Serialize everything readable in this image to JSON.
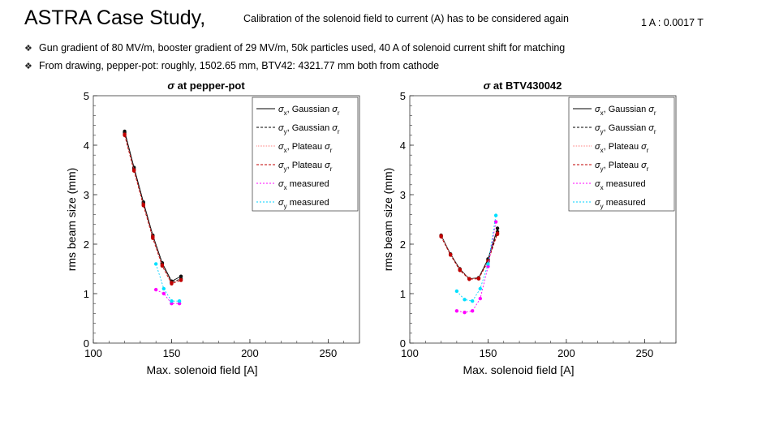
{
  "slide": {
    "title": "ASTRA Case Study,",
    "subtitle": "Calibration of the solenoid field to current (A) has to be considered again",
    "ratio_note": "1 A : 0.0017 T",
    "bullets": [
      {
        "icon": "diamond-bullet-icon",
        "text": "Gun gradient of 80 MV/m, booster gradient of 29 MV/m, 50k particles used, 40 A of solenoid current shift for matching"
      },
      {
        "icon": "diamond-bullet-icon",
        "text": "From drawing, pepper-pot: roughly, 1502.65 mm, BTV42: 4321.77 mm both from cathode"
      }
    ]
  },
  "chart_data": [
    {
      "type": "line",
      "title_symbol": "σ",
      "title": "at pepper-pot",
      "xlabel": "Max. solenoid field [A]",
      "ylabel": "rms beam size (mm)",
      "xlim": [
        100,
        270
      ],
      "ylim": [
        0,
        5
      ],
      "xticks": [
        100,
        150,
        200,
        250
      ],
      "yticks": [
        0,
        1,
        2,
        3,
        4,
        5
      ],
      "legend_position": "top-right",
      "series": [
        {
          "name": "σx, Gaussian σr",
          "sym": "σ",
          "sub": "x",
          "mid": ", Gaussian ",
          "sym2": "σ",
          "sub2": "r",
          "color": "#000000",
          "dash": "",
          "marker": "#111111",
          "x": [
            120,
            126,
            132,
            138,
            144,
            150,
            156
          ],
          "y": [
            4.28,
            3.55,
            2.85,
            2.18,
            1.62,
            1.25,
            1.35
          ]
        },
        {
          "name": "σy, Gaussian σr",
          "sym": "σ",
          "sub": "y",
          "mid": ", Gaussian ",
          "sym2": "σ",
          "sub2": "r",
          "color": "#000000",
          "dash": "3,2",
          "marker": "#111111",
          "x": [
            120,
            126,
            132,
            138,
            144,
            150,
            156
          ],
          "y": [
            4.25,
            3.52,
            2.82,
            2.15,
            1.6,
            1.23,
            1.3
          ]
        },
        {
          "name": "σx, Plateau σr",
          "sym": "σ",
          "sub": "x",
          "mid": ", Plateau ",
          "sym2": "σ",
          "sub2": "r",
          "color": "#ff8080",
          "dash": "1,1",
          "marker": "#c00000",
          "x": [
            120,
            126,
            132,
            138,
            144,
            150,
            156
          ],
          "y": [
            4.22,
            3.5,
            2.8,
            2.15,
            1.58,
            1.22,
            1.28
          ]
        },
        {
          "name": "σy, Plateau σr",
          "sym": "σ",
          "sub": "y",
          "mid": ", Plateau ",
          "sym2": "σ",
          "sub2": "r",
          "color": "#c00000",
          "dash": "3,2",
          "marker": "#c00000",
          "x": [
            120,
            126,
            132,
            138,
            144,
            150,
            156
          ],
          "y": [
            4.2,
            3.48,
            2.78,
            2.12,
            1.56,
            1.2,
            1.27
          ]
        },
        {
          "name": "σx measured",
          "sym": "σ",
          "sub": "x",
          "mid": " measured",
          "sym2": "",
          "sub2": "",
          "color": "#ff00ff",
          "dash": "2,2",
          "marker": "#ff00ff",
          "x": [
            140,
            145,
            150,
            155
          ],
          "y": [
            1.08,
            1.0,
            0.8,
            0.8
          ]
        },
        {
          "name": "σy measured",
          "sym": "σ",
          "sub": "y",
          "mid": " measured",
          "sym2": "",
          "sub2": "",
          "color": "#00d0ff",
          "dash": "2,2",
          "marker": "#00e0ff",
          "x": [
            140,
            145,
            150,
            155
          ],
          "y": [
            1.6,
            1.1,
            0.85,
            0.85
          ]
        }
      ]
    },
    {
      "type": "line",
      "title_symbol": "σ",
      "title": "at BTV430042",
      "xlabel": "Max. solenoid field [A]",
      "ylabel": "rms beam size (mm)",
      "xlim": [
        100,
        270
      ],
      "ylim": [
        0,
        5
      ],
      "xticks": [
        100,
        150,
        200,
        250
      ],
      "yticks": [
        0,
        1,
        2,
        3,
        4,
        5
      ],
      "legend_position": "top-right",
      "series": [
        {
          "name": "σx, Gaussian σr",
          "sym": "σ",
          "sub": "x",
          "mid": ", Gaussian ",
          "sym2": "σ",
          "sub2": "r",
          "color": "#000000",
          "dash": "",
          "marker": "#111111",
          "x": [
            120,
            126,
            132,
            138,
            144,
            150,
            156
          ],
          "y": [
            2.18,
            1.8,
            1.5,
            1.3,
            1.32,
            1.7,
            2.32
          ]
        },
        {
          "name": "σy, Gaussian σr",
          "sym": "σ",
          "sub": "y",
          "mid": ", Gaussian ",
          "sym2": "σ",
          "sub2": "r",
          "color": "#000000",
          "dash": "3,2",
          "marker": "#111111",
          "x": [
            120,
            126,
            132,
            138,
            144,
            150,
            156
          ],
          "y": [
            2.16,
            1.79,
            1.48,
            1.3,
            1.31,
            1.68,
            2.25
          ]
        },
        {
          "name": "σx, Plateau σr",
          "sym": "σ",
          "sub": "x",
          "mid": ", Plateau ",
          "sym2": "σ",
          "sub2": "r",
          "color": "#ff8080",
          "dash": "1,1",
          "marker": "#c00000",
          "x": [
            120,
            126,
            132,
            138,
            144,
            150,
            156
          ],
          "y": [
            2.17,
            1.79,
            1.49,
            1.3,
            1.31,
            1.66,
            2.2
          ]
        },
        {
          "name": "σy, Plateau σr",
          "sym": "σ",
          "sub": "y",
          "mid": ", Plateau ",
          "sym2": "σ",
          "sub2": "r",
          "color": "#c00000",
          "dash": "3,2",
          "marker": "#c00000",
          "x": [
            120,
            126,
            132,
            138,
            144,
            150,
            156
          ],
          "y": [
            2.15,
            1.78,
            1.47,
            1.29,
            1.3,
            1.65,
            2.22
          ]
        },
        {
          "name": "σx measured",
          "sym": "σ",
          "sub": "x",
          "mid": " measured",
          "sym2": "",
          "sub2": "",
          "color": "#ff00ff",
          "dash": "2,2",
          "marker": "#ff00ff",
          "x": [
            130,
            135,
            140,
            145,
            150,
            155
          ],
          "y": [
            0.65,
            0.62,
            0.65,
            0.9,
            1.55,
            2.45
          ]
        },
        {
          "name": "σy measured",
          "sym": "σ",
          "sub": "y",
          "mid": " measured",
          "sym2": "",
          "sub2": "",
          "color": "#00d0ff",
          "dash": "2,2",
          "marker": "#00e0ff",
          "x": [
            130,
            135,
            140,
            145,
            150,
            155
          ],
          "y": [
            1.05,
            0.88,
            0.85,
            1.1,
            1.6,
            2.58
          ]
        }
      ]
    }
  ]
}
